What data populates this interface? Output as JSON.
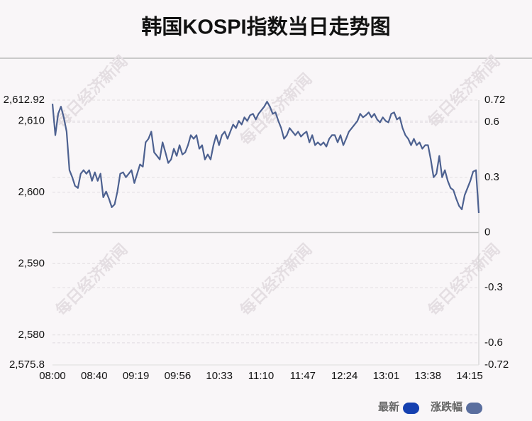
{
  "chart_data": {
    "type": "line",
    "title": "韩国KOSPI指数当日走势图",
    "watermark": "每日经济新闻",
    "xticks": [
      "08:00",
      "08:40",
      "09:19",
      "09:56",
      "10:33",
      "11:10",
      "11:47",
      "12:24",
      "13:01",
      "13:38",
      "14:15"
    ],
    "ylim": [
      2575.8,
      2612.92
    ],
    "yticks": [
      {
        "value": 2575.8,
        "label": "2,575.8"
      },
      {
        "value": 2580,
        "label": "2,580"
      },
      {
        "value": 2590,
        "label": "2,590"
      },
      {
        "value": 2600,
        "label": "2,600"
      },
      {
        "value": 2610,
        "label": "2,610"
      },
      {
        "value": 2612.92,
        "label": "2,612.92"
      }
    ],
    "y2lim": [
      -0.72,
      0.72
    ],
    "y2ticks": [
      -0.72,
      -0.6,
      -0.3,
      0,
      0.3,
      0.6,
      0.72
    ],
    "grid": true,
    "line_color": "#4d6190",
    "series": [
      {
        "name": "最新",
        "color": "#1540b0",
        "values": [
          2612.4,
          2608.0,
          2611.0,
          2612.0,
          2610.5,
          2608.5,
          2603.1,
          2602.1,
          2600.9,
          2600.6,
          2602.6,
          2603.1,
          2602.6,
          2603.1,
          2601.6,
          2602.8,
          2601.6,
          2602.6,
          2599.3,
          2600.1,
          2599.1,
          2597.9,
          2598.3,
          2600.1,
          2602.6,
          2602.8,
          2602.1,
          2602.6,
          2603.1,
          2601.3,
          2602.6,
          2603.9,
          2603.6,
          2607.0,
          2607.5,
          2608.5,
          2605.6,
          2605.1,
          2604.6,
          2607.0,
          2605.6,
          2604.1,
          2604.6,
          2606.1,
          2605.1,
          2606.6,
          2605.3,
          2605.6,
          2606.6,
          2608.0,
          2607.5,
          2608.0,
          2606.1,
          2606.6,
          2604.6,
          2605.3,
          2604.6,
          2606.6,
          2608.0,
          2606.6,
          2608.0,
          2608.5,
          2607.5,
          2608.5,
          2609.5,
          2609.0,
          2610.0,
          2609.5,
          2610.5,
          2610.0,
          2610.8,
          2611.0,
          2610.2,
          2611.0,
          2611.5,
          2612.0,
          2612.7,
          2612.0,
          2611.0,
          2611.2,
          2610.0,
          2609.0,
          2607.5,
          2608.0,
          2609.0,
          2608.5,
          2608.0,
          2608.5,
          2607.8,
          2608.2,
          2608.5,
          2607.0,
          2608.0,
          2606.6,
          2607.0,
          2606.6,
          2607.0,
          2606.4,
          2607.5,
          2608.0,
          2608.0,
          2607.0,
          2608.0,
          2606.6,
          2607.5,
          2608.5,
          2609.0,
          2609.5,
          2610.0,
          2611.0,
          2610.5,
          2610.8,
          2611.2,
          2610.5,
          2611.0,
          2610.2,
          2609.8,
          2610.5,
          2610.0,
          2609.8,
          2611.0,
          2611.2,
          2610.2,
          2610.5,
          2609.0,
          2608.0,
          2607.5,
          2606.6,
          2607.5,
          2606.6,
          2607.0,
          2606.1,
          2606.6,
          2606.6,
          2604.6,
          2602.1,
          2602.6,
          2605.1,
          2602.1,
          2603.1,
          2601.6,
          2600.6,
          2600.3,
          2599.1,
          2598.1,
          2597.6,
          2599.6,
          2600.6,
          2601.6,
          2602.9,
          2603.1,
          2597.1
        ]
      }
    ],
    "legend": [
      {
        "name": "最新",
        "color": "#1540b0"
      },
      {
        "name": "涨跌幅",
        "color": "#5a6e9e"
      }
    ]
  }
}
